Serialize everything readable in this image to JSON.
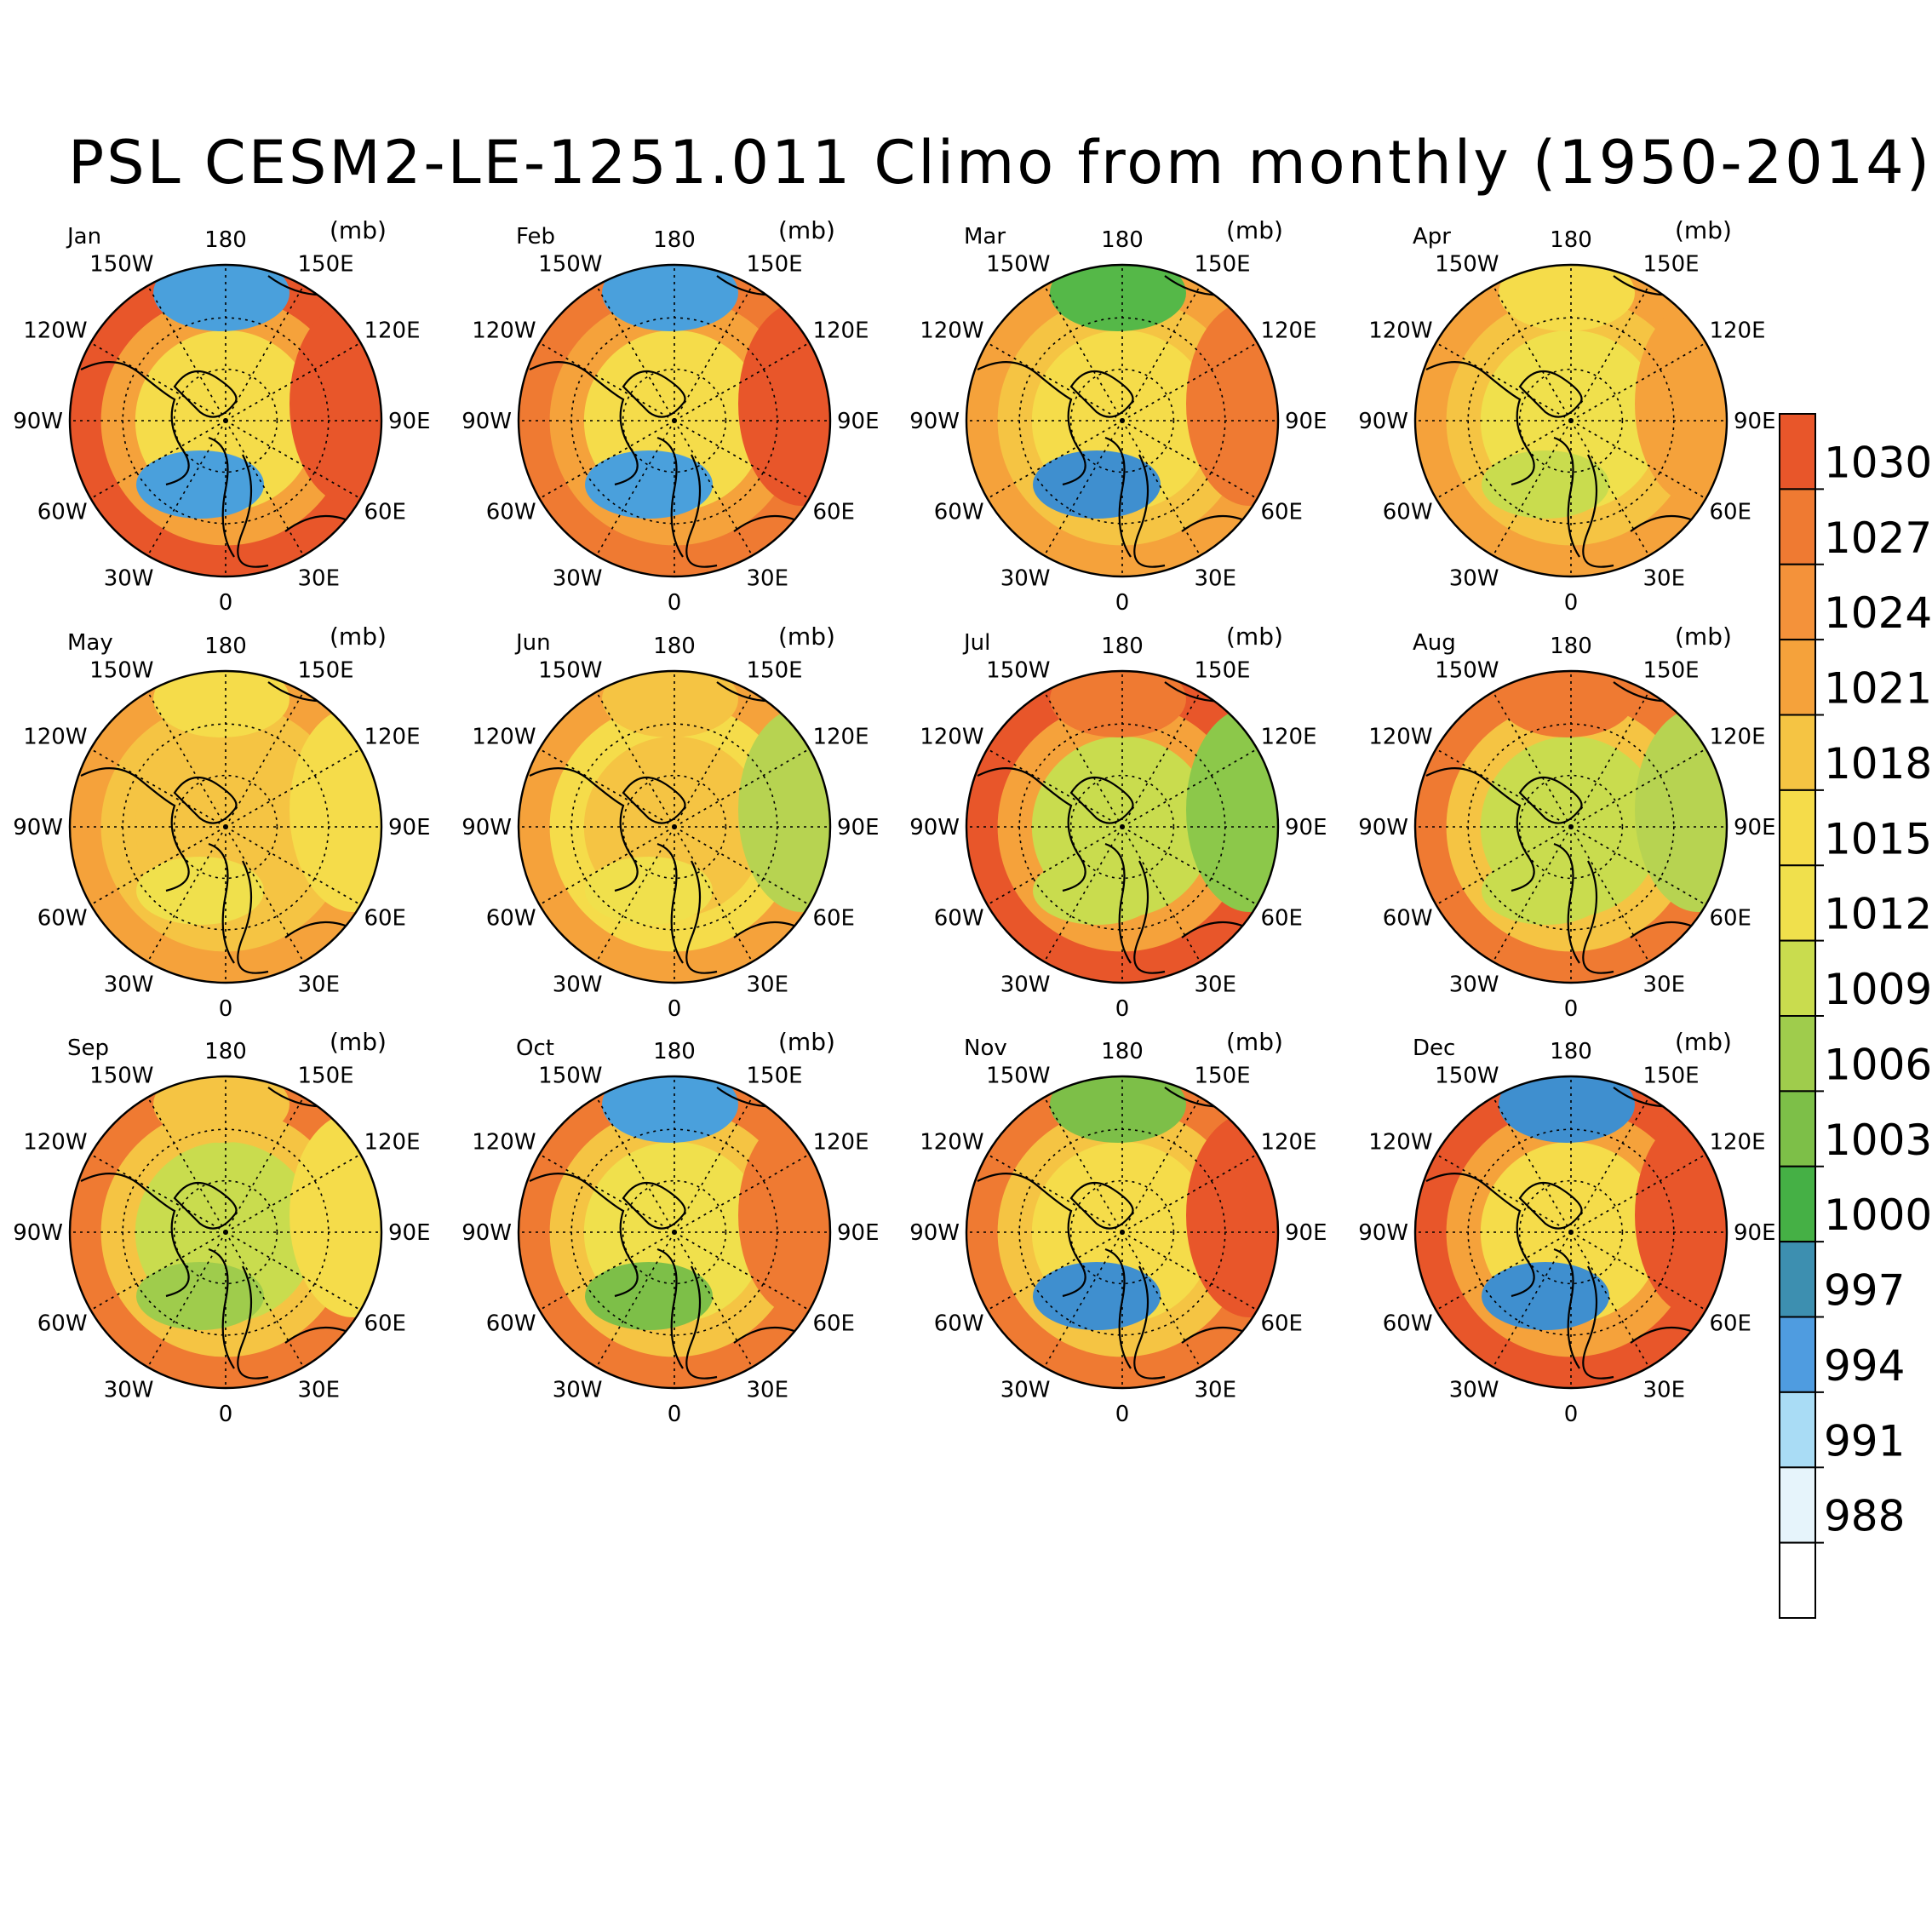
{
  "title": "PSL CESM2-LE-1251.011 Climo from monthly (1950-2014)",
  "units": "(mb)",
  "lon_labels": {
    "deg180": "180",
    "e150": "150E",
    "e120": "120E",
    "e90": "90E",
    "e60": "60E",
    "e30": "30E",
    "deg0": "0",
    "w30": "30W",
    "w60": "60W",
    "w90": "90W",
    "w120": "120W",
    "w150": "150W"
  },
  "panels": [
    {
      "month": "Jan",
      "tone": {
        "outer": "#e8562a",
        "ring": "#f5a23b",
        "mid": "#f5dc4a",
        "aleutian": "#4aa0dc",
        "iceland": "#4aa0dc",
        "siberia": "#e8562a"
      }
    },
    {
      "month": "Feb",
      "tone": {
        "outer": "#ef7a32",
        "ring": "#f5a23b",
        "mid": "#f5dc4a",
        "aleutian": "#4aa0dc",
        "iceland": "#4aa0dc",
        "siberia": "#e8562a"
      }
    },
    {
      "month": "Mar",
      "tone": {
        "outer": "#f5a23b",
        "ring": "#f5c443",
        "mid": "#f5dc4a",
        "aleutian": "#55b848",
        "iceland": "#3f8fcf",
        "siberia": "#ef7a32"
      }
    },
    {
      "month": "Apr",
      "tone": {
        "outer": "#f5a23b",
        "ring": "#f5c443",
        "mid": "#f0e04c",
        "aleutian": "#f5dc4a",
        "iceland": "#c9dc4e",
        "siberia": "#f5a23b"
      }
    },
    {
      "month": "May",
      "tone": {
        "outer": "#f5a23b",
        "ring": "#f5c443",
        "mid": "#f5c443",
        "aleutian": "#f5dc4a",
        "iceland": "#f0e04c",
        "siberia": "#f5dc4a"
      }
    },
    {
      "month": "Jun",
      "tone": {
        "outer": "#f5a23b",
        "ring": "#f5dc4a",
        "mid": "#f5c443",
        "aleutian": "#f5c443",
        "iceland": "#f0e04c",
        "siberia": "#b7d351"
      }
    },
    {
      "month": "Jul",
      "tone": {
        "outer": "#e8562a",
        "ring": "#f5a23b",
        "mid": "#c9dc4e",
        "aleutian": "#ef7a32",
        "iceland": "#c9dc4e",
        "siberia": "#8cc84a"
      }
    },
    {
      "month": "Aug",
      "tone": {
        "outer": "#ef7a32",
        "ring": "#f5c443",
        "mid": "#c9dc4e",
        "aleutian": "#ef7a32",
        "iceland": "#c9dc4e",
        "siberia": "#b7d351"
      }
    },
    {
      "month": "Sep",
      "tone": {
        "outer": "#ef7a32",
        "ring": "#f5c443",
        "mid": "#c9dc4e",
        "aleutian": "#f5c443",
        "iceland": "#9fcc4c",
        "siberia": "#f5dc4a"
      }
    },
    {
      "month": "Oct",
      "tone": {
        "outer": "#ef7a32",
        "ring": "#f5c443",
        "mid": "#f0e04c",
        "aleutian": "#4aa0dc",
        "iceland": "#7dbf48",
        "siberia": "#ef7a32"
      }
    },
    {
      "month": "Nov",
      "tone": {
        "outer": "#ef7a32",
        "ring": "#f5c443",
        "mid": "#f5dc4a",
        "aleutian": "#7dbf48",
        "iceland": "#3f8fcf",
        "siberia": "#e8562a"
      }
    },
    {
      "month": "Dec",
      "tone": {
        "outer": "#e8562a",
        "ring": "#f5a23b",
        "mid": "#f5dc4a",
        "aleutian": "#3f8fcf",
        "iceland": "#3f8fcf",
        "siberia": "#e8562a"
      }
    }
  ],
  "colorbar": {
    "labels": [
      "1030",
      "1027",
      "1024",
      "1021",
      "1018",
      "1015",
      "1012",
      "1009",
      "1006",
      "1003",
      "1000",
      "997",
      "994",
      "991",
      "988"
    ],
    "colors": [
      "#e8562a",
      "#ef7a32",
      "#f4923a",
      "#f5a23b",
      "#f5c443",
      "#f5dc4a",
      "#f0e04c",
      "#c9dc4e",
      "#9fcc4c",
      "#7dbf48",
      "#45b045",
      "#3d8fb0",
      "#4f9ce0",
      "#a9dcf5",
      "#e6f4fb",
      "#ffffff"
    ]
  }
}
